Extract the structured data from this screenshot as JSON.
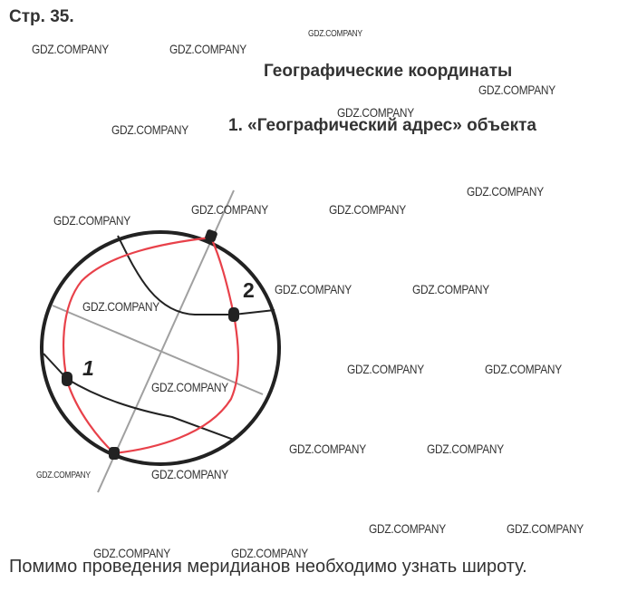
{
  "page": {
    "page_number": "Стр. 35.",
    "title": "Географические координаты",
    "subtitle": "1. «Географический адрес» объекта",
    "answer": "Помимо проведения меридианов необходимо узнать широту."
  },
  "diagram": {
    "point_labels": [
      "1",
      "2"
    ],
    "colors": {
      "outline": "#222222",
      "route": "#e8414a",
      "axis": "#a0a0a0"
    }
  },
  "watermark": "GDZ.COMPANY"
}
